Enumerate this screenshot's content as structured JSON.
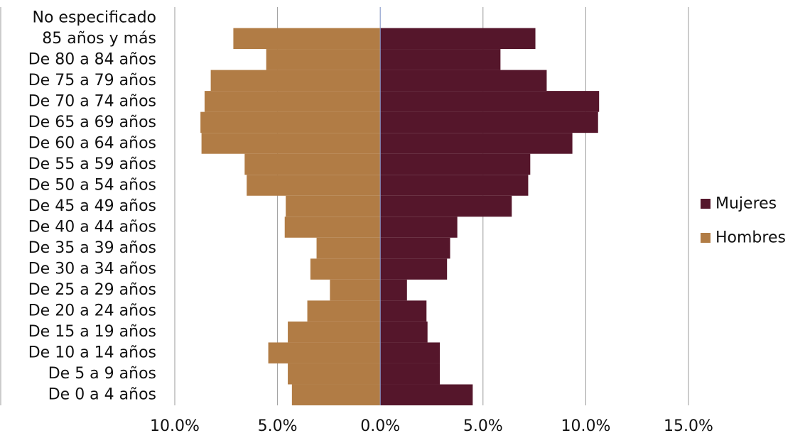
{
  "chart_data": {
    "type": "bar",
    "orientation": "horizontal",
    "layout": "population-pyramid",
    "categories": [
      "De 0 a 4 años",
      "De 5 a 9 años",
      "De 10 a 14 años",
      "De 15 a 19 años",
      "De 20 a 24 años",
      "De 25 a 29 años",
      "De 30 a 34 años",
      "De 35 a 39 años",
      "De 40 a 44 años",
      "De 45 a 49 años",
      "De 50 a 54 años",
      "De 55 a 59 años",
      "De 60 a 64 años",
      "De 65 a 69 años",
      "De 70 a 74 años",
      "De 75 a 79 años",
      "De 80 a 84 años",
      "85 años y más",
      "No especificado"
    ],
    "series": [
      {
        "name": "Mujeres",
        "color": "#55162b",
        "values": [
          4.5,
          2.9,
          2.9,
          2.3,
          2.25,
          1.3,
          3.25,
          3.4,
          3.75,
          6.4,
          7.2,
          7.3,
          9.35,
          10.6,
          10.65,
          8.1,
          5.85,
          7.55,
          0
        ]
      },
      {
        "name": "Hombres",
        "color": "#b17c45",
        "values": [
          4.3,
          4.5,
          5.45,
          4.5,
          3.55,
          2.45,
          3.4,
          3.1,
          4.65,
          4.6,
          6.5,
          6.6,
          8.7,
          8.75,
          8.55,
          8.25,
          5.55,
          7.15,
          0
        ]
      }
    ],
    "xlim": [
      -10,
      15
    ],
    "x_ticks": [
      "10.0%",
      "5.0%",
      "0.0%",
      "5.0%",
      "10.0%",
      "15.0%"
    ],
    "x_tick_values": [
      -10,
      -5,
      0,
      5,
      10,
      15
    ],
    "grid": "vertical",
    "legend": "right"
  }
}
